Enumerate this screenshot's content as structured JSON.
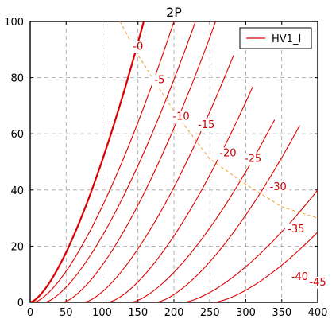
{
  "chart_data": {
    "type": "line",
    "title": "2P",
    "xlabel": "",
    "ylabel": "",
    "xlim": [
      0,
      400
    ],
    "ylim": [
      0,
      100
    ],
    "x_ticks": [
      0,
      50,
      100,
      150,
      200,
      250,
      300,
      350,
      400
    ],
    "y_ticks": [
      0,
      20,
      40,
      60,
      80,
      100
    ],
    "grid": true,
    "legend": {
      "position": "top-right",
      "entries": [
        "HV1_I"
      ]
    },
    "colors": {
      "curves": "#dd0000",
      "load_line": "#f0a030",
      "grid": "#a0a0a0"
    },
    "series": [
      {
        "label": "-0",
        "x_start": 0,
        "x_end": 158,
        "y_end": 100,
        "end_label_at": [
          150,
          90
        ]
      },
      {
        "label": "-5",
        "x_start": 5,
        "x_end": 200,
        "y_end": 100,
        "end_label_at": [
          180,
          78
        ]
      },
      {
        "label": "-10",
        "x_start": 20,
        "x_end": 230,
        "y_end": 100,
        "end_label_at": [
          210,
          65
        ]
      },
      {
        "label": "-15",
        "x_start": 45,
        "x_end": 258,
        "y_end": 100,
        "end_label_at": [
          245,
          62
        ]
      },
      {
        "label": "-20",
        "x_start": 75,
        "x_end": 283,
        "y_end": 88,
        "end_label_at": [
          275,
          52
        ]
      },
      {
        "label": "-25",
        "x_start": 108,
        "x_end": 310,
        "y_end": 77,
        "end_label_at": [
          310,
          50
        ]
      },
      {
        "label": "-30",
        "x_start": 140,
        "x_end": 340,
        "y_end": 65,
        "end_label_at": [
          345,
          40
        ]
      },
      {
        "label": "-35",
        "x_start": 175,
        "x_end": 375,
        "y_end": 63,
        "end_label_at": [
          370,
          25
        ]
      },
      {
        "label": "-40",
        "x_start": 213,
        "x_end": 400,
        "y_end": 40,
        "end_label_at": [
          375,
          8
        ]
      },
      {
        "label": "-45",
        "x_start": 255,
        "x_end": 400,
        "y_end": 25,
        "end_label_at": [
          400,
          6
        ]
      }
    ],
    "load_line": [
      [
        125,
        100
      ],
      [
        150,
        88
      ],
      [
        175,
        78
      ],
      [
        200,
        68
      ],
      [
        250,
        51
      ],
      [
        300,
        42
      ],
      [
        350,
        34
      ],
      [
        400,
        30
      ]
    ]
  }
}
